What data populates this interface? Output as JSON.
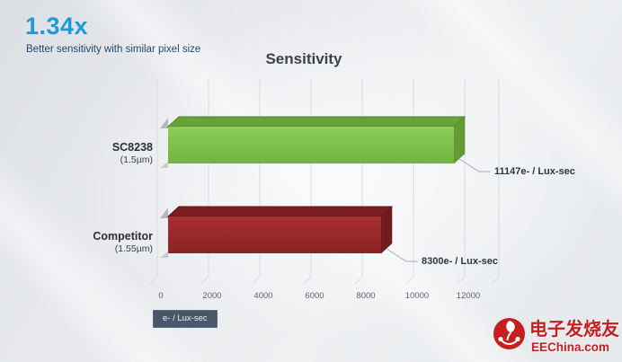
{
  "header": {
    "multiplier": "1.34x",
    "subtitle": "Better sensitivity with similar pixel size"
  },
  "chart_data": {
    "type": "bar",
    "orientation": "horizontal",
    "style": "3d",
    "title": "Sensitivity",
    "categories": [
      "SC8238",
      "Competitor"
    ],
    "category_sublabels": [
      "(1.5µm)",
      "(1.55µm)"
    ],
    "values": [
      11147,
      8300
    ],
    "value_labels": [
      "11147e- / Lux-sec",
      "8300e- / Lux-sec"
    ],
    "x_ticks": [
      "0",
      "2000",
      "4000",
      "6000",
      "8000",
      "10000",
      "12000"
    ],
    "xlim": [
      0,
      12000
    ],
    "grid": true,
    "legend": "none",
    "unit_badge": "e- / Lux-sec",
    "series_colors": [
      {
        "front": "#8ccd58",
        "front2": "#74b241",
        "top": "#68a137",
        "side": "#649b34",
        "edge": "#517f28"
      },
      {
        "front": "#a72e30",
        "front2": "#8d2325",
        "top": "#7a1e20",
        "side": "#701b1d",
        "edge": "#621518"
      }
    ],
    "gridline_color": "#d9dce1",
    "callout_line_color": "#a6abb2"
  },
  "watermark": {
    "site_name": "电子发烧友",
    "site_url": "EEChina.com",
    "accent": "#c51f1f"
  },
  "ui_colors": {
    "accent_blue": "#1d9bd5",
    "subtitle_navy": "#1e4a6f",
    "badge_bg": "#485769",
    "badge_text": "#eef1f4"
  }
}
